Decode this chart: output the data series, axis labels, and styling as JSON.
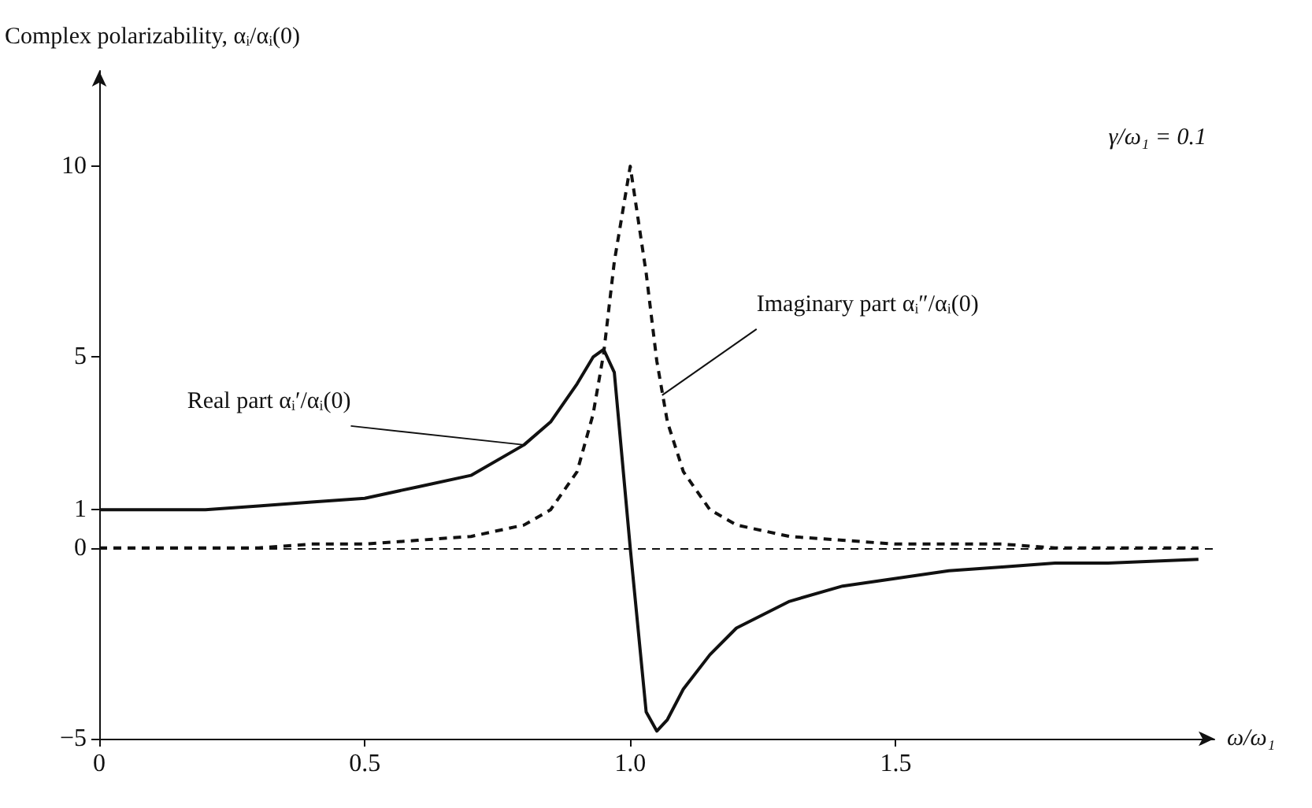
{
  "chart_data": {
    "type": "line",
    "ylabel": "Complex polarizability, αᵢ/αᵢ(0)",
    "xlabel": "ω/ω₁",
    "x": [
      0,
      0.1,
      0.2,
      0.3,
      0.4,
      0.5,
      0.6,
      0.7,
      0.8,
      0.85,
      0.9,
      0.93,
      0.95,
      0.97,
      1.0,
      1.03,
      1.05,
      1.07,
      1.1,
      1.15,
      1.2,
      1.3,
      1.4,
      1.5,
      1.6,
      1.7,
      1.8,
      1.9,
      2.07
    ],
    "series": [
      {
        "color": "#111111",
        "line_style": "solid",
        "values": [
          1.0,
          1.0,
          1.0,
          1.1,
          1.2,
          1.3,
          1.6,
          1.9,
          2.7,
          3.3,
          4.3,
          5.0,
          5.2,
          4.6,
          0,
          -4.3,
          -4.8,
          -4.5,
          -3.7,
          -2.8,
          -2.1,
          -1.4,
          -1.0,
          -0.8,
          -0.6,
          -0.5,
          -0.4,
          -0.4,
          -0.3
        ]
      },
      {
        "color": "#111111",
        "line_style": "dashed",
        "values": [
          0,
          0,
          0,
          0,
          0.1,
          0.1,
          0.2,
          0.3,
          0.6,
          1.0,
          2.0,
          3.5,
          5.1,
          7.5,
          10,
          7.2,
          4.9,
          3.3,
          2.0,
          1.0,
          0.6,
          0.3,
          0.2,
          0.1,
          0.1,
          0.1,
          0,
          0,
          0
        ]
      }
    ],
    "xlim": [
      0,
      2.1
    ],
    "xticks": [
      0,
      0.5,
      {
        "value": 1,
        "label": "1.0"
      },
      1.5
    ],
    "ylim": [
      -5,
      12.5
    ],
    "yticks": [
      {
        "value": -5,
        "label": "−5"
      },
      0,
      1,
      5,
      10
    ],
    "ref_lines": [
      {
        "axis": "y",
        "value": 0,
        "label": null,
        "color": "#111111",
        "line_style": "dashed"
      }
    ],
    "annotations": [
      {
        "text": "Real part αᵢ′/αᵢ(0)",
        "x": 0.8,
        "y": 2.7
      },
      {
        "text": "Imaginary part αᵢ″/αᵢ(0)",
        "x": 1.06,
        "y": 4.0
      },
      "γ/ω₁ = 0.1"
    ],
    "grid": false,
    "marker": "none"
  }
}
